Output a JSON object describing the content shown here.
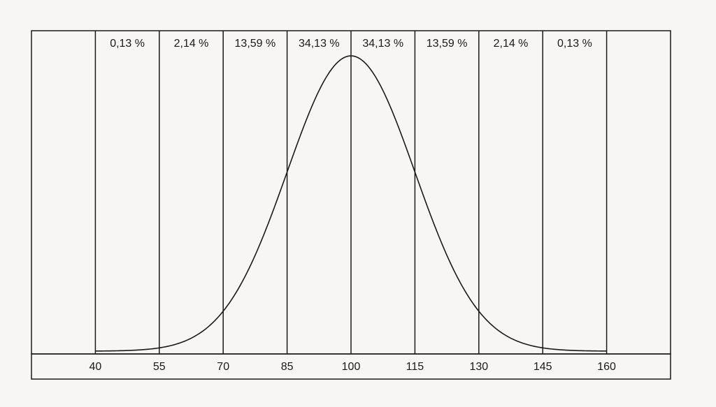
{
  "chart_data": {
    "type": "line",
    "title": "",
    "xlabel": "",
    "ylabel": "",
    "x_ticks": [
      40,
      55,
      70,
      85,
      100,
      115,
      130,
      145,
      160
    ],
    "xlim": [
      25,
      175
    ],
    "band_boundaries": [
      40,
      55,
      70,
      85,
      100,
      115,
      130,
      145,
      160
    ],
    "band_labels": [
      "0,13 %",
      "2,14 %",
      "13,59 %",
      "34,13 %",
      "34,13 %",
      "13,59 %",
      "2,14 %",
      "0,13 %"
    ],
    "band_percentages": [
      0.13,
      2.14,
      13.59,
      34.13,
      34.13,
      13.59,
      2.14,
      0.13
    ],
    "series": [
      {
        "distribution": "normal",
        "mean": 100,
        "sd": 15
      }
    ],
    "grid": false,
    "legend": "none",
    "colors": {
      "line": "#1a1a1a",
      "background": "#f7f6f4"
    }
  }
}
